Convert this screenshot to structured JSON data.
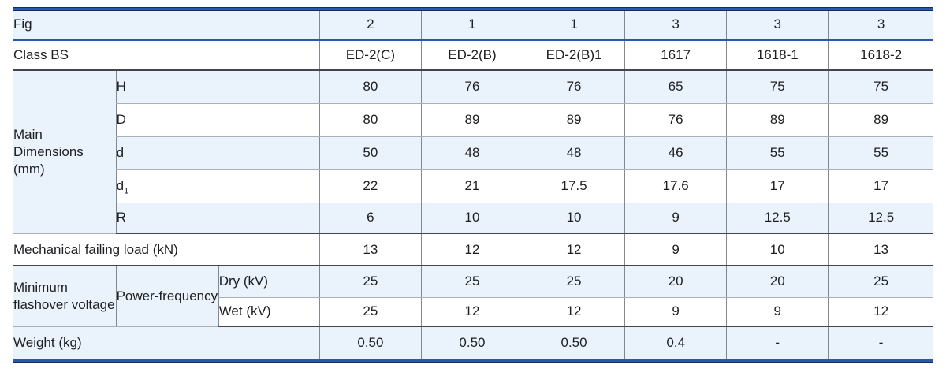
{
  "colors": {
    "row_highlight": "#eaf2fb",
    "accent_blue_line": "#2a57a9",
    "band_edge_navy": "#1a2d55",
    "grid_gray": "#a9afb5",
    "grid_dark": "#43474c",
    "vertical_gray": "#81888f",
    "text": "#1d1f22"
  },
  "table": {
    "rows": {
      "fig": {
        "label": "Fig",
        "values": [
          "2",
          "1",
          "1",
          "3",
          "3",
          "3"
        ]
      },
      "class_bs": {
        "label": "Class BS",
        "values": [
          "ED-2(C)",
          "ED-2(B)",
          "ED-2(B)1",
          "1617",
          "1618-1",
          "1618-2"
        ]
      },
      "main_dimensions": {
        "group_label": "Main Dimensions (mm)",
        "sub_rows": [
          {
            "label": "H",
            "sub": "",
            "values": [
              "80",
              "76",
              "76",
              "65",
              "75",
              "75"
            ]
          },
          {
            "label": "D",
            "sub": "",
            "values": [
              "80",
              "89",
              "89",
              "76",
              "89",
              "89"
            ]
          },
          {
            "label": "d",
            "sub": "",
            "values": [
              "50",
              "48",
              "48",
              "46",
              "55",
              "55"
            ]
          },
          {
            "label": "d",
            "sub": "1",
            "values": [
              "22",
              "21",
              "17.5",
              "17.6",
              "17",
              "17"
            ]
          },
          {
            "label": "R",
            "sub": "",
            "values": [
              "6",
              "10",
              "10",
              "9",
              "12.5",
              "12.5"
            ]
          }
        ]
      },
      "mechanical": {
        "label": "Mechanical failing load (kN)",
        "values": [
          "13",
          "12",
          "12",
          "9",
          "10",
          "13"
        ]
      },
      "flashover": {
        "group_label": "Minimum flashover voltage",
        "subgroup_label": "Power-frequency",
        "sub_rows": [
          {
            "label": "Dry (kV)",
            "values": [
              "25",
              "25",
              "25",
              "20",
              "20",
              "25"
            ]
          },
          {
            "label": "Wet (kV)",
            "values": [
              "25",
              "12",
              "12",
              "9",
              "9",
              "12"
            ]
          }
        ]
      },
      "weight": {
        "label": "Weight (kg)",
        "values": [
          "0.50",
          "0.50",
          "0.50",
          "0.4",
          "-",
          "-"
        ]
      }
    }
  }
}
